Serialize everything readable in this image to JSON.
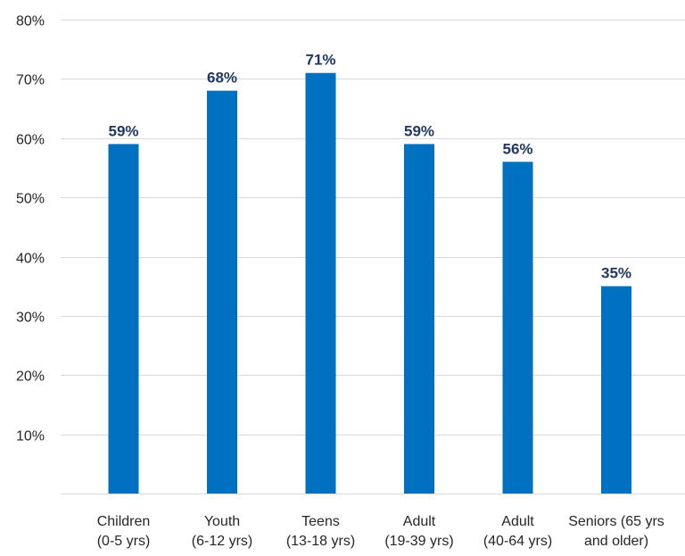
{
  "chart_data": {
    "type": "bar",
    "categories": [
      [
        "Children",
        "(0-5 yrs)"
      ],
      [
        "Youth",
        "(6-12 yrs)"
      ],
      [
        "Teens",
        "(13-18 yrs)"
      ],
      [
        "Adult",
        "(19-39 yrs)"
      ],
      [
        "Adult",
        "(40-64 yrs)"
      ],
      [
        "Seniors (65 yrs",
        "and older)"
      ]
    ],
    "values": [
      59,
      68,
      71,
      59,
      56,
      35
    ],
    "data_labels": [
      "59%",
      "68%",
      "71%",
      "59%",
      "56%",
      "35%"
    ],
    "y_ticks": [
      "10%",
      "20%",
      "30%",
      "40%",
      "50%",
      "60%",
      "70%",
      "80%"
    ],
    "y_tick_values": [
      10,
      20,
      30,
      40,
      50,
      60,
      70,
      80
    ],
    "ylim": [
      0,
      80
    ],
    "grid": true,
    "legend": "none",
    "colors": {
      "bar": "#0070c0",
      "data_label": "#1f3864"
    }
  }
}
